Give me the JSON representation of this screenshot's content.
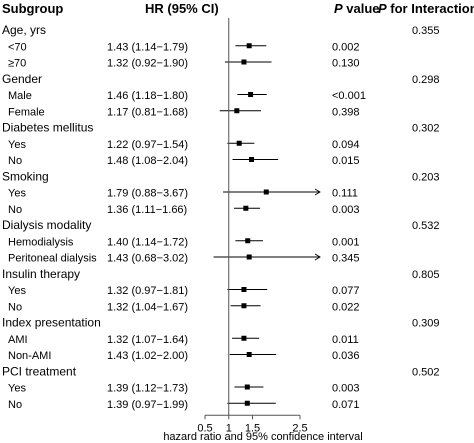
{
  "headers": {
    "subgroup": "Subgroup",
    "hr": "HR (95% CI)",
    "p_italic": "P",
    "p_rest": " value",
    "pint_italic": "P",
    "pint_rest": " for Interaction"
  },
  "chart_data": {
    "type": "forest",
    "xlabel": "hazard ratio and 95% confidence interval",
    "x_ticks": [
      "0.5",
      "1",
      "1.5",
      "2.5"
    ],
    "xlim": [
      0.5,
      2.5
    ],
    "reference_line": 1,
    "rows": [
      {
        "kind": "group",
        "label": "Age, yrs",
        "p_interaction": "0.355"
      },
      {
        "kind": "item",
        "label": "<70",
        "hr_text": "1.43 (1.14−1.79)",
        "hr": 1.43,
        "lo": 1.14,
        "hi": 1.79,
        "p": "0.002"
      },
      {
        "kind": "item",
        "label": "≥70",
        "hr_text": "1.32 (0.92−1.90)",
        "hr": 1.32,
        "lo": 0.92,
        "hi": 1.9,
        "p": "0.130"
      },
      {
        "kind": "group",
        "label": "Gender",
        "p_interaction": "0.298"
      },
      {
        "kind": "item",
        "label": "Male",
        "hr_text": "1.46 (1.18−1.80)",
        "hr": 1.46,
        "lo": 1.18,
        "hi": 1.8,
        "p": "<0.001"
      },
      {
        "kind": "item",
        "label": "Female",
        "hr_text": "1.17 (0.81−1.68)",
        "hr": 1.17,
        "lo": 0.81,
        "hi": 1.68,
        "p": "0.398"
      },
      {
        "kind": "group",
        "label": "Diabetes mellitus",
        "p_interaction": "0.302"
      },
      {
        "kind": "item",
        "label": "Yes",
        "hr_text": "1.22 (0.97−1.54)",
        "hr": 1.22,
        "lo": 0.97,
        "hi": 1.54,
        "p": "0.094"
      },
      {
        "kind": "item",
        "label": "No",
        "hr_text": "1.48 (1.08−2.04)",
        "hr": 1.48,
        "lo": 1.08,
        "hi": 2.04,
        "p": "0.015"
      },
      {
        "kind": "group",
        "label": "Smoking",
        "p_interaction": "0.203"
      },
      {
        "kind": "item",
        "label": "Yes",
        "hr_text": "1.79 (0.88−3.67)",
        "hr": 1.79,
        "lo": 0.88,
        "hi": 3.67,
        "p": "0.111",
        "arrow": true
      },
      {
        "kind": "item",
        "label": "No",
        "hr_text": "1.36 (1.11−1.66)",
        "hr": 1.36,
        "lo": 1.11,
        "hi": 1.66,
        "p": "0.003"
      },
      {
        "kind": "group",
        "label": "Dialysis modality",
        "p_interaction": "0.532"
      },
      {
        "kind": "item",
        "label": "Hemodialysis",
        "hr_text": "1.40 (1.14−1.72)",
        "hr": 1.4,
        "lo": 1.14,
        "hi": 1.72,
        "p": "0.001"
      },
      {
        "kind": "item",
        "label": "Peritoneal dialysis",
        "hr_text": "1.43 (0.68−3.02)",
        "hr": 1.43,
        "lo": 0.68,
        "hi": 3.02,
        "p": "0.345",
        "arrow": true
      },
      {
        "kind": "group",
        "label": "Insulin therapy",
        "p_interaction": "0.805"
      },
      {
        "kind": "item",
        "label": "Yes",
        "hr_text": "1.32 (0.97−1.81)",
        "hr": 1.32,
        "lo": 0.97,
        "hi": 1.81,
        "p": "0.077"
      },
      {
        "kind": "item",
        "label": "No",
        "hr_text": "1.32 (1.04−1.67)",
        "hr": 1.32,
        "lo": 1.04,
        "hi": 1.67,
        "p": "0.022"
      },
      {
        "kind": "group",
        "label": "Index presentation",
        "p_interaction": "0.309"
      },
      {
        "kind": "item",
        "label": "AMI",
        "hr_text": "1.32 (1.07−1.64)",
        "hr": 1.32,
        "lo": 1.07,
        "hi": 1.64,
        "p": "0.011"
      },
      {
        "kind": "item",
        "label": "Non-AMI",
        "hr_text": "1.43 (1.02−2.00)",
        "hr": 1.43,
        "lo": 1.02,
        "hi": 2.0,
        "p": "0.036"
      },
      {
        "kind": "group",
        "label": "PCI treatment",
        "p_interaction": "0.502"
      },
      {
        "kind": "item",
        "label": "Yes",
        "hr_text": "1.39 (1.12−1.73)",
        "hr": 1.39,
        "lo": 1.12,
        "hi": 1.73,
        "p": "0.003"
      },
      {
        "kind": "item",
        "label": "No",
        "hr_text": "1.39 (0.97−1.99)",
        "hr": 1.39,
        "lo": 0.97,
        "hi": 1.99,
        "p": "0.071"
      }
    ]
  }
}
